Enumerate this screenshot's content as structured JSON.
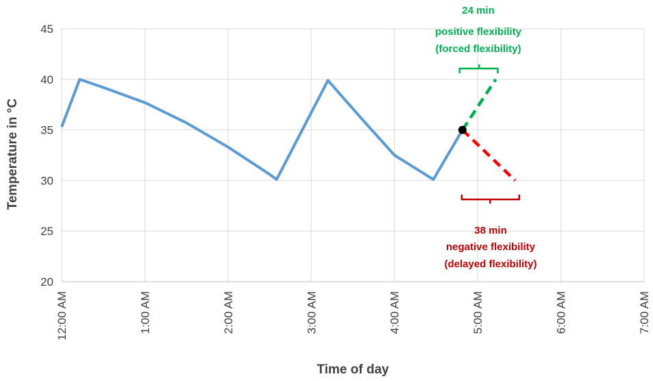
{
  "chart_data": {
    "type": "line",
    "title": "",
    "xlabel": "Time of day",
    "ylabel": "Temperature in °C",
    "ylim": [
      20,
      45
    ],
    "yticks": [
      "20",
      "25",
      "30",
      "35",
      "40",
      "45"
    ],
    "xlim_minutes": [
      0,
      420
    ],
    "xticks": [
      "12:00 AM",
      "1:00 AM",
      "2:00 AM",
      "3:00 AM",
      "4:00 AM",
      "5:00 AM",
      "6:00 AM",
      "7:00 AM"
    ],
    "grid": true,
    "legend": "none",
    "series": [
      {
        "color": "#5B9BD5",
        "style": "solid",
        "points": [
          [
            "0:00",
            35.3
          ],
          [
            "0:13",
            40.0
          ],
          [
            "0:30",
            39.2
          ],
          [
            "1:00",
            37.7
          ],
          [
            "1:30",
            35.7
          ],
          [
            "2:00",
            33.3
          ],
          [
            "2:30",
            30.6
          ],
          [
            "2:35",
            30.1
          ],
          [
            "3:12",
            39.9
          ],
          [
            "3:37",
            36.0
          ],
          [
            "4:00",
            32.5
          ],
          [
            "4:28",
            30.1
          ],
          [
            "4:49",
            35.0
          ]
        ]
      },
      {
        "color": "#00B050",
        "style": "dashed",
        "points": [
          [
            "4:49",
            35.0
          ],
          [
            "5:13",
            40.0
          ]
        ]
      },
      {
        "color": "#FF0000",
        "style": "dashed",
        "points": [
          [
            "4:49",
            35.0
          ],
          [
            "5:27",
            30.0
          ]
        ]
      }
    ],
    "marker": {
      "x": "4:49",
      "y": 35.0,
      "color": "#000000"
    },
    "annotations": {
      "positive": {
        "color": "#00B050",
        "lines": [
          "24 min",
          "positive flexibility",
          "(forced flexibility)"
        ]
      },
      "negative": {
        "color": "#C00000",
        "lines": [
          "38 min",
          "negative flexibility",
          "(delayed flexibility)"
        ]
      }
    }
  }
}
